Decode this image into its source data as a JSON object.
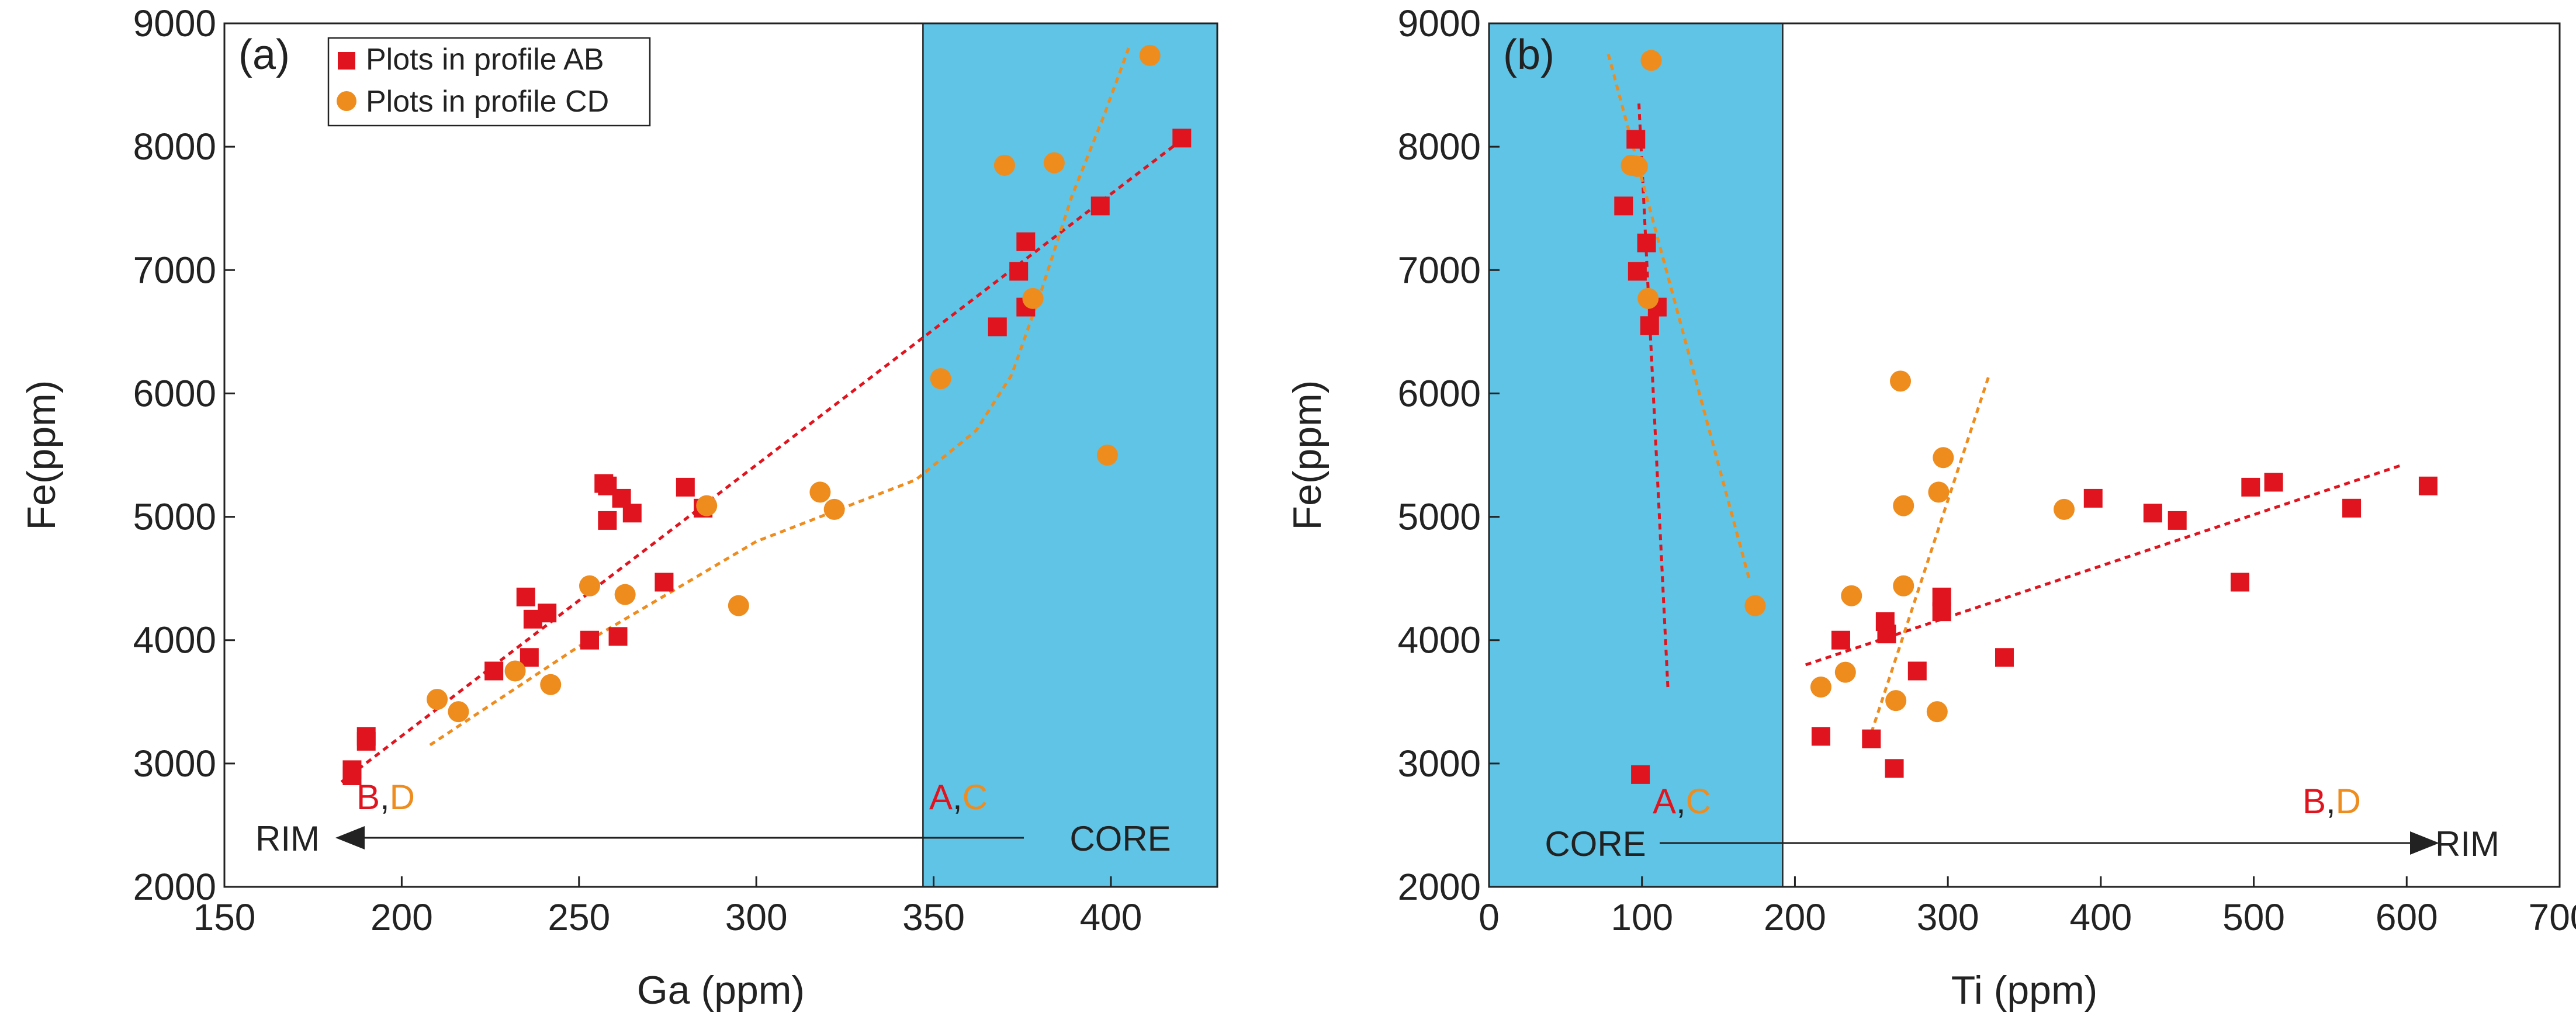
{
  "colors": {
    "series_ab": "#e0141e",
    "series_cd": "#ee8c1e",
    "core_zone": "#5fc4e6",
    "axis": "#222222"
  },
  "chart_data": [
    {
      "type": "scatter",
      "panel_label": "(a)",
      "xlabel": "Ga (ppm)",
      "ylabel": "Fe(ppm)",
      "xlim": [
        150,
        430
      ],
      "ylim": [
        2000,
        9000
      ],
      "xticks": [
        150,
        200,
        250,
        300,
        350,
        400
      ],
      "xtick_labels": [
        "150",
        "200",
        "250",
        "300",
        "350",
        "400"
      ],
      "yticks": [
        2000,
        3000,
        4000,
        5000,
        6000,
        7000,
        8000,
        9000
      ],
      "ytick_labels": [
        "2000",
        "3000",
        "4000",
        "5000",
        "6000",
        "7000",
        "8000",
        "9000"
      ],
      "shaded_region": {
        "x": [
          347,
          430
        ]
      },
      "legend": {
        "placement": "top-left",
        "entries": [
          "Plots in profile AB",
          "Plots in profile CD"
        ]
      },
      "series": [
        {
          "name": "Plots in profile AB",
          "marker": "square",
          "points": [
            [
              186,
              2950
            ],
            [
              186,
              2900
            ],
            [
              190,
              3220
            ],
            [
              190,
              3180
            ],
            [
              226,
              3750
            ],
            [
              235,
              4350
            ],
            [
              236,
              3860
            ],
            [
              237,
              4170
            ],
            [
              241,
              4220
            ],
            [
              253,
              4000
            ],
            [
              257,
              5270
            ],
            [
              258,
              4970
            ],
            [
              258,
              5250
            ],
            [
              261,
              4030
            ],
            [
              262,
              5150
            ],
            [
              265,
              5030
            ],
            [
              274,
              4470
            ],
            [
              280,
              5240
            ],
            [
              285,
              5070
            ],
            [
              368,
              6540
            ],
            [
              374,
              6990
            ],
            [
              376,
              6700
            ],
            [
              376,
              7230
            ],
            [
              397,
              7520
            ],
            [
              420,
              8070
            ]
          ]
        },
        {
          "name": "Plots in profile CD",
          "marker": "circle",
          "points": [
            [
              210,
              3520
            ],
            [
              216,
              3420
            ],
            [
              232,
              3750
            ],
            [
              242,
              3640
            ],
            [
              253,
              4440
            ],
            [
              263,
              4370
            ],
            [
              286,
              5090
            ],
            [
              295,
              4280
            ],
            [
              318,
              5200
            ],
            [
              322,
              5060
            ],
            [
              352,
              6120
            ],
            [
              370,
              7850
            ],
            [
              378,
              6770
            ],
            [
              384,
              7870
            ],
            [
              399,
              5500
            ],
            [
              411,
              8740
            ]
          ]
        }
      ],
      "trendlines": [
        {
          "series": "Plots in profile AB",
          "kind": "linear",
          "points": [
            [
              183,
              2850
            ],
            [
              422,
              8100
            ]
          ]
        },
        {
          "series": "Plots in profile CD",
          "kind": "curve",
          "points": [
            [
              208,
              3150
            ],
            [
              250,
              3950
            ],
            [
              300,
              4800
            ],
            [
              345,
              5300
            ],
            [
              362,
              5700
            ],
            [
              372,
              6150
            ],
            [
              380,
              6800
            ],
            [
              389,
              7600
            ],
            [
              398,
              8250
            ],
            [
              405,
              8800
            ]
          ]
        }
      ],
      "annotations": {
        "left_letters": [
          "B",
          ",",
          "D"
        ],
        "right_letters": [
          "A",
          ",",
          "C"
        ],
        "left_text": "RIM",
        "right_text": "CORE",
        "arrow": "core-to-rim, pointing left"
      }
    },
    {
      "type": "scatter",
      "panel_label": "(b)",
      "xlabel": "Ti (ppm)",
      "ylabel": "Fe(ppm)",
      "xlim": [
        0,
        700
      ],
      "ylim": [
        2000,
        9000
      ],
      "xticks": [
        0,
        100,
        200,
        300,
        400,
        500,
        600,
        700
      ],
      "xtick_labels": [
        "0",
        "100",
        "200",
        "300",
        "400",
        "500",
        "600",
        "700"
      ],
      "yticks": [
        2000,
        3000,
        4000,
        5000,
        6000,
        7000,
        8000,
        9000
      ],
      "ytick_labels": [
        "2000",
        "3000",
        "4000",
        "5000",
        "6000",
        "7000",
        "8000",
        "9000"
      ],
      "shaded_region": {
        "x": [
          0,
          192
        ]
      },
      "series": [
        {
          "name": "Plots in profile AB",
          "marker": "square",
          "points": [
            [
              88,
              7520
            ],
            [
              96,
              8060
            ],
            [
              97,
              6990
            ],
            [
              99,
              2910
            ],
            [
              103,
              7220
            ],
            [
              105,
              6550
            ],
            [
              110,
              6700
            ],
            [
              217,
              3220
            ],
            [
              230,
              4000
            ],
            [
              250,
              3200
            ],
            [
              259,
              4150
            ],
            [
              260,
              4050
            ],
            [
              265,
              2960
            ],
            [
              280,
              3750
            ],
            [
              296,
              4350
            ],
            [
              296,
              4230
            ],
            [
              337,
              3860
            ],
            [
              395,
              5150
            ],
            [
              434,
              5030
            ],
            [
              450,
              4970
            ],
            [
              491,
              4470
            ],
            [
              498,
              5240
            ],
            [
              513,
              5280
            ],
            [
              564,
              5070
            ],
            [
              614,
              5250
            ]
          ]
        },
        {
          "name": "Plots in profile CD",
          "marker": "circle",
          "points": [
            [
              93,
              7850
            ],
            [
              97,
              7840
            ],
            [
              104,
              6770
            ],
            [
              106,
              8700
            ],
            [
              174,
              4280
            ],
            [
              217,
              3620
            ],
            [
              233,
              3740
            ],
            [
              237,
              4360
            ],
            [
              266,
              3510
            ],
            [
              269,
              6100
            ],
            [
              271,
              4440
            ],
            [
              271,
              5090
            ],
            [
              293,
              3420
            ],
            [
              294,
              5200
            ],
            [
              297,
              5480
            ],
            [
              376,
              5060
            ]
          ]
        }
      ],
      "trendlines": [
        {
          "series": "Plots in profile AB",
          "kind": "linear",
          "points": [
            [
              98,
              8350
            ],
            [
              117,
              3600
            ]
          ]
        },
        {
          "series": "Plots in profile CD",
          "kind": "linear",
          "points": [
            [
              78,
              8750
            ],
            [
              170,
              4500
            ]
          ]
        },
        {
          "series": "Plots in profile AB",
          "kind": "linear",
          "points": [
            [
              207,
              3800
            ],
            [
              597,
              5420
            ]
          ]
        },
        {
          "series": "Plots in profile CD",
          "kind": "linear",
          "points": [
            [
              250,
              3250
            ],
            [
              327,
              6150
            ]
          ]
        }
      ],
      "annotations": {
        "left_letters": [
          "A",
          ",",
          "C"
        ],
        "right_letters": [
          "B",
          ",",
          "D"
        ],
        "left_text": "CORE",
        "right_text": "RIM",
        "arrow": "core-to-rim, pointing right"
      }
    }
  ]
}
